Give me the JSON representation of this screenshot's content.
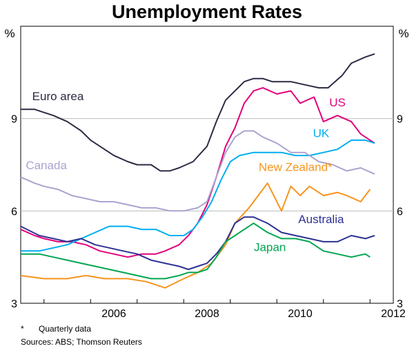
{
  "chart_data": {
    "type": "line",
    "title": "Unemployment Rates",
    "ylabel_left": "%",
    "ylabel_right": "%",
    "ylim": [
      3,
      12
    ],
    "yticks": [
      3,
      6,
      9
    ],
    "xlim": [
      2004.5,
      2012.5
    ],
    "xticks": [
      2006,
      2008,
      2010,
      2012
    ],
    "grid": true,
    "footnote_mark": "*",
    "footnote_text": "Quarterly data",
    "sources": "Sources: ABS; Thomson Reuters",
    "series": [
      {
        "name": "Euro area",
        "color": "#2b2b44",
        "x": [
          2004.5,
          2004.8,
          2005.0,
          2005.2,
          2005.5,
          2005.8,
          2006.0,
          2006.3,
          2006.5,
          2006.8,
          2007.0,
          2007.3,
          2007.5,
          2007.7,
          2007.9,
          2008.2,
          2008.5,
          2008.7,
          2008.9,
          2009.1,
          2009.3,
          2009.5,
          2009.7,
          2009.9,
          2010.1,
          2010.3,
          2010.6,
          2010.9,
          2011.1,
          2011.4,
          2011.6,
          2011.9,
          2012.1
        ],
        "values": [
          9.3,
          9.3,
          9.2,
          9.1,
          8.9,
          8.6,
          8.3,
          8.0,
          7.8,
          7.6,
          7.5,
          7.5,
          7.3,
          7.3,
          7.4,
          7.6,
          8.1,
          8.9,
          9.6,
          9.9,
          10.2,
          10.3,
          10.3,
          10.2,
          10.2,
          10.2,
          10.1,
          10.0,
          10.0,
          10.4,
          10.8,
          11.0,
          11.1
        ]
      },
      {
        "name": "US",
        "color": "#e2007a",
        "x": [
          2004.5,
          2004.8,
          2005.0,
          2005.3,
          2005.6,
          2005.9,
          2006.2,
          2006.5,
          2006.8,
          2007.1,
          2007.4,
          2007.6,
          2007.9,
          2008.1,
          2008.3,
          2008.5,
          2008.7,
          2008.9,
          2009.1,
          2009.3,
          2009.5,
          2009.7,
          2010.0,
          2010.3,
          2010.5,
          2010.8,
          2011.0,
          2011.3,
          2011.6,
          2011.8,
          2012.1
        ],
        "values": [
          5.4,
          5.2,
          5.1,
          5.0,
          5.0,
          4.9,
          4.7,
          4.6,
          4.5,
          4.6,
          4.6,
          4.7,
          4.9,
          5.2,
          5.6,
          6.2,
          7.1,
          8.1,
          8.7,
          9.5,
          9.9,
          10.0,
          9.8,
          9.9,
          9.5,
          9.7,
          8.9,
          9.1,
          8.9,
          8.5,
          8.2
        ]
      },
      {
        "name": "UK",
        "color": "#00aeef",
        "x": [
          2004.5,
          2004.9,
          2005.2,
          2005.5,
          2005.8,
          2006.1,
          2006.4,
          2006.8,
          2007.1,
          2007.4,
          2007.7,
          2008.0,
          2008.2,
          2008.4,
          2008.6,
          2008.8,
          2009.0,
          2009.2,
          2009.5,
          2009.8,
          2010.1,
          2010.4,
          2010.7,
          2011.0,
          2011.3,
          2011.6,
          2011.9,
          2012.1
        ],
        "values": [
          4.7,
          4.7,
          4.8,
          4.9,
          5.1,
          5.3,
          5.5,
          5.5,
          5.4,
          5.4,
          5.2,
          5.2,
          5.4,
          5.8,
          6.3,
          7.0,
          7.6,
          7.8,
          7.9,
          7.9,
          7.9,
          7.8,
          7.8,
          7.9,
          8.0,
          8.3,
          8.3,
          8.2
        ]
      },
      {
        "name": "Canada",
        "color": "#a9a4cf",
        "x": [
          2004.5,
          2004.8,
          2005.0,
          2005.3,
          2005.6,
          2005.9,
          2006.2,
          2006.5,
          2006.8,
          2007.1,
          2007.4,
          2007.7,
          2008.0,
          2008.3,
          2008.5,
          2008.7,
          2008.9,
          2009.1,
          2009.3,
          2009.5,
          2009.7,
          2010.0,
          2010.3,
          2010.6,
          2010.9,
          2011.2,
          2011.5,
          2011.8,
          2012.1
        ],
        "values": [
          7.1,
          6.9,
          6.8,
          6.7,
          6.5,
          6.4,
          6.3,
          6.3,
          6.2,
          6.1,
          6.1,
          6.0,
          6.0,
          6.1,
          6.3,
          7.1,
          7.9,
          8.4,
          8.6,
          8.6,
          8.4,
          8.2,
          7.9,
          7.9,
          7.6,
          7.5,
          7.3,
          7.4,
          7.2
        ]
      },
      {
        "name": "New Zealand*",
        "color": "#f7941d",
        "x": [
          2004.5,
          2005.0,
          2005.5,
          2005.9,
          2006.3,
          2006.8,
          2007.2,
          2007.6,
          2008.0,
          2008.3,
          2008.6,
          2008.9,
          2009.1,
          2009.4,
          2009.6,
          2009.8,
          2010.1,
          2010.3,
          2010.5,
          2010.7,
          2011.0,
          2011.3,
          2011.5,
          2011.8,
          2012.0
        ],
        "values": [
          3.9,
          3.8,
          3.8,
          3.9,
          3.8,
          3.8,
          3.7,
          3.5,
          3.8,
          4.0,
          4.3,
          4.9,
          5.6,
          6.1,
          6.5,
          6.9,
          6.0,
          6.8,
          6.5,
          6.8,
          6.5,
          6.6,
          6.5,
          6.3,
          6.7
        ]
      },
      {
        "name": "Australia",
        "color": "#2e3192",
        "x": [
          2004.5,
          2004.9,
          2005.2,
          2005.5,
          2005.8,
          2006.1,
          2006.4,
          2006.7,
          2007.0,
          2007.3,
          2007.6,
          2007.9,
          2008.1,
          2008.3,
          2008.5,
          2008.7,
          2008.9,
          2009.1,
          2009.3,
          2009.5,
          2009.8,
          2010.1,
          2010.4,
          2010.7,
          2011.0,
          2011.3,
          2011.6,
          2011.9,
          2012.1
        ],
        "values": [
          5.5,
          5.2,
          5.1,
          5.0,
          5.1,
          4.9,
          4.8,
          4.7,
          4.6,
          4.4,
          4.3,
          4.2,
          4.1,
          4.2,
          4.3,
          4.6,
          5.0,
          5.6,
          5.8,
          5.8,
          5.6,
          5.3,
          5.2,
          5.1,
          5.0,
          5.0,
          5.2,
          5.1,
          5.2
        ]
      },
      {
        "name": "Japan",
        "color": "#00a651",
        "x": [
          2004.5,
          2004.9,
          2005.2,
          2005.5,
          2005.8,
          2006.1,
          2006.4,
          2006.7,
          2007.0,
          2007.3,
          2007.6,
          2007.9,
          2008.1,
          2008.3,
          2008.5,
          2008.7,
          2008.9,
          2009.1,
          2009.3,
          2009.5,
          2009.8,
          2010.1,
          2010.4,
          2010.7,
          2011.0,
          2011.3,
          2011.6,
          2011.9,
          2012.0
        ],
        "values": [
          4.6,
          4.6,
          4.5,
          4.4,
          4.3,
          4.2,
          4.1,
          4.0,
          3.9,
          3.8,
          3.8,
          3.9,
          4.0,
          4.0,
          4.1,
          4.5,
          5.0,
          5.2,
          5.4,
          5.6,
          5.3,
          5.1,
          5.1,
          5.0,
          4.7,
          4.6,
          4.5,
          4.6,
          4.5
        ]
      }
    ],
    "labels": [
      "Euro area",
      "US",
      "UK",
      "Canada",
      "New Zealand*",
      "Australia",
      "Japan"
    ]
  }
}
